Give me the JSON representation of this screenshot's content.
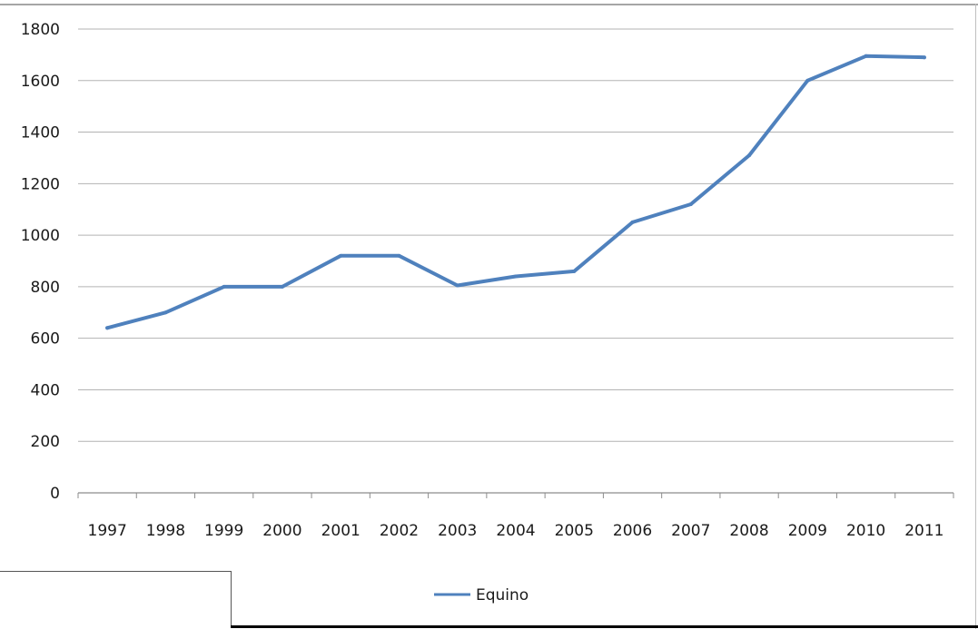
{
  "chart_data": {
    "type": "line",
    "title": "",
    "xlabel": "",
    "ylabel": "",
    "categories": [
      "1997",
      "1998",
      "1999",
      "2000",
      "2001",
      "2002",
      "2003",
      "2004",
      "2005",
      "2006",
      "2007",
      "2008",
      "2009",
      "2010",
      "2011"
    ],
    "series": [
      {
        "name": "Equino",
        "values": [
          640,
          700,
          800,
          800,
          920,
          920,
          805,
          840,
          860,
          1050,
          1120,
          1310,
          1600,
          1695,
          1690
        ],
        "color": "#4f81bd"
      }
    ],
    "ylim": [
      0,
      1800
    ],
    "yticks": [
      "0",
      "200",
      "400",
      "600",
      "800",
      "1000",
      "1200",
      "1400",
      "1600",
      "1800"
    ],
    "grid": true,
    "legend_position": "bottom"
  }
}
